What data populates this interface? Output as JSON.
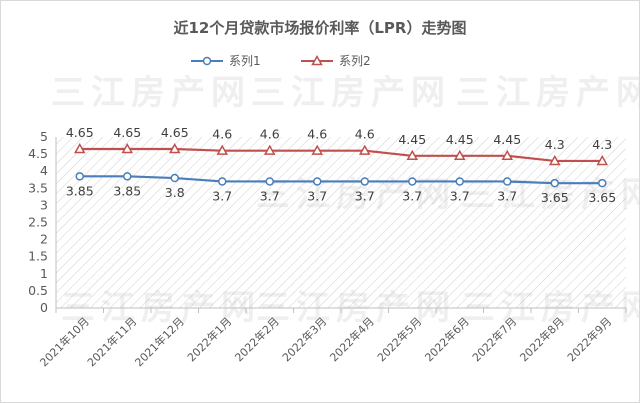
{
  "chart_data": {
    "type": "line",
    "title": "近12个月贷款市场报价利率（LPR）走势图",
    "categories": [
      "2021年10月",
      "2021年11月",
      "2021年12月",
      "2022年1月",
      "2022年2月",
      "2022年3月",
      "2022年4月",
      "2022年5月",
      "2022年6月",
      "2022年7月",
      "2022年8月",
      "2022年9月"
    ],
    "series": [
      {
        "name": "系列1",
        "color": "#4a7ebb",
        "marker": "circle",
        "values": [
          3.85,
          3.85,
          3.8,
          3.7,
          3.7,
          3.7,
          3.7,
          3.7,
          3.7,
          3.7,
          3.65,
          3.65
        ]
      },
      {
        "name": "系列2",
        "color": "#c0504d",
        "marker": "triangle",
        "values": [
          4.65,
          4.65,
          4.65,
          4.6,
          4.6,
          4.6,
          4.6,
          4.45,
          4.45,
          4.45,
          4.3,
          4.3
        ]
      }
    ],
    "y_ticks": [
      "0",
      "0.5",
      "1",
      "1.5",
      "2",
      "2.5",
      "3",
      "3.5",
      "4",
      "4.5",
      "5"
    ],
    "ylim": [
      0,
      5
    ],
    "xlabel": "",
    "ylabel": "",
    "legend_position": "top",
    "watermark": "三江房产网"
  }
}
